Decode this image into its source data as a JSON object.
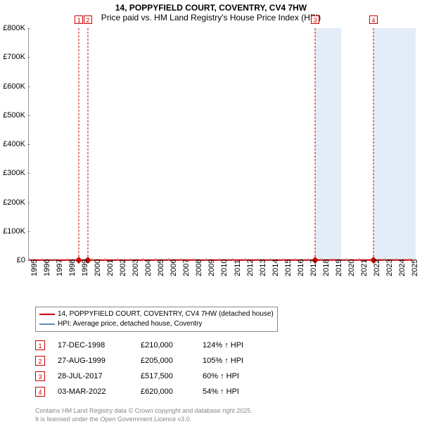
{
  "title_line1": "14, POPPYFIELD COURT, COVENTRY, CV4 7HW",
  "title_line2": "Price paid vs. HM Land Registry's House Price Index (HPI)",
  "chart": {
    "type": "line",
    "x_start_year": 1995,
    "x_end_year": 2025.5,
    "ylim": [
      0,
      800000
    ],
    "ytick_step": 100000,
    "y_labels": [
      "£0",
      "£100K",
      "£200K",
      "£300K",
      "£400K",
      "£500K",
      "£600K",
      "£700K",
      "£800K"
    ],
    "x_years": [
      1995,
      1996,
      1997,
      1998,
      1999,
      2000,
      2001,
      2002,
      2003,
      2004,
      2005,
      2006,
      2007,
      2008,
      2009,
      2010,
      2011,
      2012,
      2013,
      2014,
      2015,
      2016,
      2017,
      2018,
      2019,
      2020,
      2021,
      2022,
      2023,
      2024,
      2025
    ],
    "series_red": {
      "color": "#cc0000",
      "width": 2,
      "label": "14, POPPYFIELD COURT, COVENTRY, CV4 7HW (detached house)",
      "points": [
        [
          1995,
          180
        ],
        [
          1996,
          180
        ],
        [
          1997,
          185
        ],
        [
          1998,
          200
        ],
        [
          1998.96,
          210
        ],
        [
          1999,
          208
        ],
        [
          1999.65,
          205
        ],
        [
          2000,
          220
        ],
        [
          2001,
          250
        ],
        [
          2002,
          300
        ],
        [
          2003,
          360
        ],
        [
          2004,
          420
        ],
        [
          2005,
          450
        ],
        [
          2006,
          470
        ],
        [
          2007,
          495
        ],
        [
          2007.6,
          500
        ],
        [
          2008,
          480
        ],
        [
          2008.5,
          420
        ],
        [
          2009,
          430
        ],
        [
          2010,
          470
        ],
        [
          2011,
          460
        ],
        [
          2012,
          470
        ],
        [
          2013,
          490
        ],
        [
          2014,
          530
        ],
        [
          2015,
          560
        ],
        [
          2016,
          605
        ],
        [
          2017,
          640
        ],
        [
          2017.5,
          660
        ],
        [
          2017.57,
          517.5
        ],
        [
          2017.7,
          520
        ],
        [
          2018,
          560
        ],
        [
          2019,
          585
        ],
        [
          2020,
          590
        ],
        [
          2021,
          620
        ],
        [
          2022,
          640
        ],
        [
          2022.17,
          620
        ],
        [
          2022.5,
          635
        ],
        [
          2023,
          640
        ],
        [
          2023.5,
          620
        ],
        [
          2024,
          660
        ],
        [
          2024.5,
          650
        ],
        [
          2025,
          680
        ],
        [
          2025.3,
          680
        ]
      ]
    },
    "series_blue": {
      "color": "#5b8dbd",
      "width": 1.5,
      "label": "HPI: Average price, detached house, Coventry",
      "points": [
        [
          1995,
          78
        ],
        [
          1996,
          78
        ],
        [
          1997,
          80
        ],
        [
          1998,
          85
        ],
        [
          1999,
          92
        ],
        [
          2000,
          100
        ],
        [
          2001,
          118
        ],
        [
          2002,
          145
        ],
        [
          2003,
          175
        ],
        [
          2004,
          205
        ],
        [
          2005,
          218
        ],
        [
          2006,
          225
        ],
        [
          2007,
          240
        ],
        [
          2008,
          235
        ],
        [
          2008.5,
          205
        ],
        [
          2009,
          208
        ],
        [
          2010,
          225
        ],
        [
          2011,
          222
        ],
        [
          2012,
          225
        ],
        [
          2013,
          235
        ],
        [
          2014,
          255
        ],
        [
          2015,
          272
        ],
        [
          2016,
          293
        ],
        [
          2017,
          310
        ],
        [
          2018,
          327
        ],
        [
          2019,
          335
        ],
        [
          2020,
          345
        ],
        [
          2021,
          385
        ],
        [
          2022,
          420
        ],
        [
          2023,
          415
        ],
        [
          2024,
          440
        ],
        [
          2025,
          455
        ],
        [
          2025.3,
          458
        ]
      ]
    },
    "markers": [
      {
        "n": "1",
        "year": 1998.96,
        "price": 210000
      },
      {
        "n": "2",
        "year": 1999.65,
        "price": 205000
      },
      {
        "n": "3",
        "year": 2017.57,
        "price": 517500
      },
      {
        "n": "4",
        "year": 2022.17,
        "price": 620000
      }
    ],
    "shades": [
      {
        "from": 2017.57,
        "to": 2019.6
      },
      {
        "from": 2022.17,
        "to": 2025.5
      }
    ]
  },
  "sales": [
    {
      "n": "1",
      "date": "17-DEC-1998",
      "price": "£210,000",
      "pct": "124% ↑ HPI"
    },
    {
      "n": "2",
      "date": "27-AUG-1999",
      "price": "£205,000",
      "pct": "105% ↑ HPI"
    },
    {
      "n": "3",
      "date": "28-JUL-2017",
      "price": "£517,500",
      "pct": "60% ↑ HPI"
    },
    {
      "n": "4",
      "date": "03-MAR-2022",
      "price": "£620,000",
      "pct": "54% ↑ HPI"
    }
  ],
  "footer_line1": "Contains HM Land Registry data © Crown copyright and database right 2025.",
  "footer_line2": "It is licensed under the Open Government Licence v3.0."
}
